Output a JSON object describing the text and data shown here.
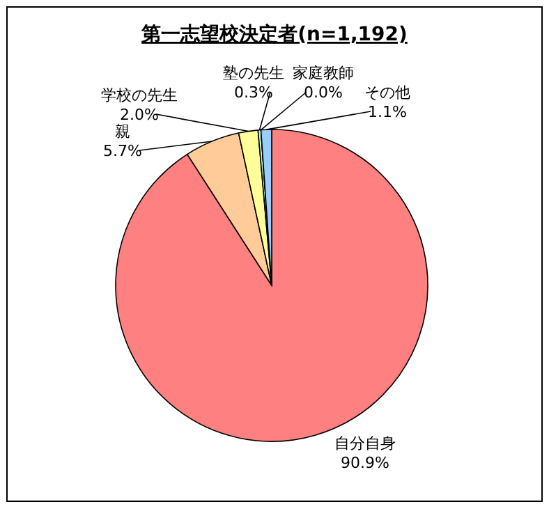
{
  "chart_data": {
    "type": "pie",
    "title": "第一志望校決定者(n=1,192)",
    "categories": [
      "自分自身",
      "親",
      "学校の先生",
      "塾の先生",
      "家庭教師",
      "その他"
    ],
    "values": [
      90.9,
      5.7,
      2.0,
      0.3,
      0.0,
      1.1
    ],
    "value_labels": [
      "90.9%",
      "5.7%",
      "2.0%",
      "0.3%",
      "0.0%",
      "1.1%"
    ],
    "colors": [
      "#ff8080",
      "#ffcc99",
      "#ffff99",
      "#ccffcc",
      "#cc99ff",
      "#99ccff"
    ],
    "legend": false
  }
}
